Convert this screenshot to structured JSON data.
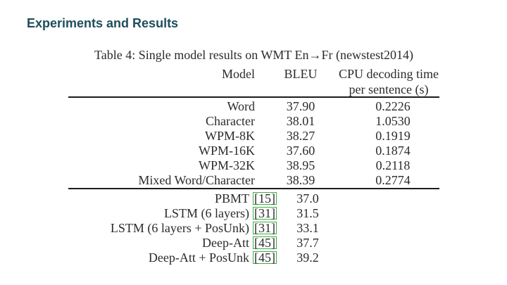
{
  "slide": {
    "title": "Experiments and Results"
  },
  "table": {
    "caption": "Table 4: Single model results on WMT En→Fr (newstest2014)",
    "headers": {
      "model": "Model",
      "bleu": "BLEU",
      "cpu_line1": "CPU decoding time",
      "cpu_line2": "per sentence (s)"
    },
    "section_a": [
      {
        "model": "Word",
        "bleu": "37.90",
        "cpu": "0.2226"
      },
      {
        "model": "Character",
        "bleu": "38.01",
        "cpu": "1.0530"
      },
      {
        "model": "WPM-8K",
        "bleu": "38.27",
        "cpu": "0.1919"
      },
      {
        "model": "WPM-16K",
        "bleu": "37.60",
        "cpu": "0.1874"
      },
      {
        "model": "WPM-32K",
        "bleu": "38.95",
        "cpu": "0.2118"
      },
      {
        "model": "Mixed Word/Character",
        "bleu": "38.39",
        "cpu": "0.2774"
      }
    ],
    "section_b": [
      {
        "model": "PBMT",
        "cite": "[15]",
        "bleu": "37.0"
      },
      {
        "model": "LSTM (6 layers)",
        "cite": "[31]",
        "bleu": "31.5"
      },
      {
        "model": "LSTM (6 layers + PosUnk)",
        "cite": "[31]",
        "bleu": "33.1"
      },
      {
        "model": "Deep-Att",
        "cite": "[45]",
        "bleu": "37.7"
      },
      {
        "model": "Deep-Att + PosUnk",
        "cite": "[45]",
        "bleu": "39.2"
      }
    ]
  },
  "colors": {
    "title_text": "#1e4e5c",
    "citation_box_border": "#3fae44",
    "body_text": "#2b2b2b",
    "rule": "#1c1c1c",
    "background": "#ffffff"
  }
}
